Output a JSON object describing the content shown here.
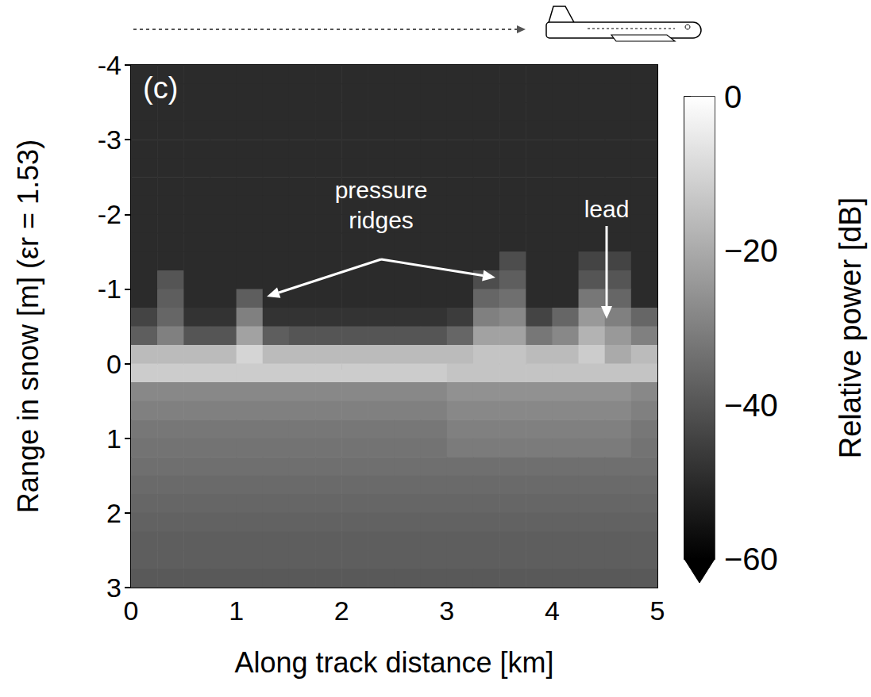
{
  "chart_data": {
    "type": "heatmap",
    "panel_label": "(c)",
    "xlabel": "Along track distance [km]",
    "ylabel": "Range in snow [m] (εr = 1.53)",
    "xlim": [
      0,
      5
    ],
    "xticks": [
      0,
      1,
      2,
      3,
      4,
      5
    ],
    "ylim": [
      -4,
      3
    ],
    "yticks": [
      -4,
      -3,
      -2,
      -1,
      0,
      1,
      2,
      3
    ],
    "x_bins": [
      0,
      0.25,
      0.5,
      0.75,
      1,
      1.25,
      1.5,
      1.75,
      2,
      2.25,
      2.5,
      2.75,
      3,
      3.25,
      3.5,
      3.75,
      4,
      4.25,
      4.5,
      4.75,
      5
    ],
    "y_bins": [
      -4,
      -3.75,
      -3.5,
      -3.25,
      -3,
      -2.75,
      -2.5,
      -2.25,
      -2,
      -1.75,
      -1.5,
      -1.25,
      -1,
      -0.75,
      -0.5,
      -0.25,
      0,
      0.25,
      0.5,
      0.75,
      1,
      1.25,
      1.5,
      1.75,
      2,
      2.25,
      2.5,
      2.75,
      3
    ],
    "cells": [
      [
        -50,
        -50,
        -50,
        -50,
        -50,
        -50,
        -50,
        -50,
        -50,
        -50,
        -50,
        -50,
        -50,
        -50,
        -50,
        -50,
        -50,
        -50,
        -50,
        -50
      ],
      [
        -50,
        -50,
        -50,
        -50,
        -50,
        -50,
        -50,
        -50,
        -50,
        -50,
        -50,
        -50,
        -50,
        -50,
        -50,
        -50,
        -50,
        -50,
        -50,
        -50
      ],
      [
        -50,
        -50,
        -50,
        -50,
        -50,
        -50,
        -50,
        -50,
        -50,
        -50,
        -50,
        -50,
        -50,
        -50,
        -50,
        -50,
        -50,
        -50,
        -50,
        -50
      ],
      [
        -50,
        -50,
        -50,
        -50,
        -50,
        -50,
        -50,
        -50,
        -50,
        -50,
        -50,
        -50,
        -50,
        -50,
        -50,
        -50,
        -50,
        -50,
        -50,
        -50
      ],
      [
        -50,
        -50,
        -50,
        -50,
        -50,
        -50,
        -50,
        -50,
        -50,
        -50,
        -50,
        -50,
        -50,
        -50,
        -50,
        -50,
        -50,
        -50,
        -50,
        -50
      ],
      [
        -50,
        -50,
        -50,
        -50,
        -50,
        -50,
        -50,
        -50,
        -50,
        -50,
        -50,
        -50,
        -50,
        -50,
        -50,
        -50,
        -50,
        -50,
        -50,
        -50
      ],
      [
        -50,
        -50,
        -50,
        -50,
        -50,
        -50,
        -50,
        -50,
        -50,
        -50,
        -50,
        -50,
        -50,
        -50,
        -50,
        -50,
        -50,
        -50,
        -50,
        -50
      ],
      [
        -50,
        -50,
        -50,
        -50,
        -50,
        -50,
        -50,
        -50,
        -50,
        -50,
        -50,
        -50,
        -50,
        -50,
        -50,
        -50,
        -50,
        -50,
        -50,
        -50
      ],
      [
        -50,
        -50,
        -50,
        -50,
        -50,
        -50,
        -50,
        -50,
        -50,
        -50,
        -50,
        -50,
        -50,
        -50,
        -50,
        -50,
        -50,
        -50,
        -50,
        -50
      ],
      [
        -50,
        -50,
        -50,
        -50,
        -50,
        -50,
        -50,
        -50,
        -50,
        -50,
        -50,
        -50,
        -50,
        -50,
        -50,
        -50,
        -50,
        -50,
        -50,
        -50
      ],
      [
        -50,
        -50,
        -50,
        -50,
        -50,
        -50,
        -50,
        -50,
        -50,
        -50,
        -50,
        -50,
        -50,
        -50,
        -42,
        -50,
        -50,
        -44,
        -44,
        -50
      ],
      [
        -50,
        -40,
        -50,
        -50,
        -50,
        -50,
        -50,
        -50,
        -50,
        -50,
        -50,
        -50,
        -50,
        -42,
        -38,
        -50,
        -50,
        -40,
        -40,
        -50
      ],
      [
        -50,
        -38,
        -50,
        -50,
        -38,
        -50,
        -50,
        -50,
        -50,
        -50,
        -50,
        -50,
        -50,
        -36,
        -34,
        -50,
        -50,
        -32,
        -36,
        -50
      ],
      [
        -44,
        -36,
        -48,
        -48,
        -30,
        -48,
        -48,
        -48,
        -48,
        -48,
        -48,
        -48,
        -46,
        -30,
        -28,
        -44,
        -36,
        -24,
        -30,
        -36
      ],
      [
        -38,
        -30,
        -40,
        -40,
        -22,
        -38,
        -40,
        -40,
        -40,
        -40,
        -40,
        -40,
        -36,
        -22,
        -22,
        -32,
        -28,
        -18,
        -24,
        -30
      ],
      [
        -16,
        -16,
        -16,
        -16,
        -10,
        -16,
        -16,
        -16,
        -16,
        -16,
        -16,
        -16,
        -16,
        -14,
        -14,
        -16,
        -16,
        -12,
        -20,
        -16
      ],
      [
        -12,
        -12,
        -12,
        -12,
        -12,
        -12,
        -12,
        -12,
        -12,
        -12,
        -12,
        -12,
        -14,
        -14,
        -14,
        -14,
        -14,
        -14,
        -14,
        -14
      ],
      [
        -28,
        -28,
        -28,
        -28,
        -28,
        -28,
        -28,
        -28,
        -28,
        -28,
        -28,
        -28,
        -26,
        -26,
        -26,
        -26,
        -26,
        -26,
        -26,
        -28
      ],
      [
        -30,
        -30,
        -30,
        -30,
        -30,
        -30,
        -30,
        -30,
        -30,
        -30,
        -30,
        -30,
        -28,
        -28,
        -28,
        -28,
        -28,
        -28,
        -28,
        -30
      ],
      [
        -32,
        -32,
        -32,
        -32,
        -32,
        -32,
        -32,
        -32,
        -32,
        -32,
        -32,
        -32,
        -30,
        -30,
        -30,
        -30,
        -30,
        -30,
        -30,
        -32
      ],
      [
        -33,
        -33,
        -33,
        -33,
        -33,
        -33,
        -33,
        -33,
        -33,
        -33,
        -33,
        -33,
        -31,
        -31,
        -31,
        -31,
        -31,
        -31,
        -31,
        -33
      ],
      [
        -34,
        -34,
        -34,
        -34,
        -34,
        -34,
        -34,
        -34,
        -34,
        -34,
        -34,
        -34,
        -34,
        -34,
        -34,
        -34,
        -34,
        -34,
        -34,
        -34
      ],
      [
        -35,
        -35,
        -35,
        -35,
        -35,
        -35,
        -35,
        -35,
        -35,
        -35,
        -35,
        -35,
        -35,
        -35,
        -35,
        -35,
        -35,
        -35,
        -35,
        -35
      ],
      [
        -36,
        -36,
        -36,
        -36,
        -36,
        -36,
        -36,
        -36,
        -36,
        -36,
        -36,
        -36,
        -36,
        -36,
        -36,
        -36,
        -36,
        -36,
        -36,
        -36
      ],
      [
        -37,
        -37,
        -37,
        -37,
        -37,
        -37,
        -37,
        -37,
        -37,
        -37,
        -37,
        -37,
        -37,
        -37,
        -37,
        -37,
        -37,
        -37,
        -37,
        -37
      ],
      [
        -38,
        -38,
        -38,
        -38,
        -38,
        -38,
        -38,
        -38,
        -38,
        -38,
        -38,
        -38,
        -38,
        -38,
        -38,
        -38,
        -38,
        -38,
        -38,
        -38
      ],
      [
        -38,
        -38,
        -38,
        -38,
        -38,
        -38,
        -38,
        -38,
        -38,
        -38,
        -38,
        -38,
        -38,
        -38,
        -38,
        -38,
        -38,
        -38,
        -38,
        -38
      ],
      [
        -39,
        -39,
        -39,
        -39,
        -39,
        -39,
        -39,
        -39,
        -39,
        -39,
        -39,
        -39,
        -39,
        -39,
        -39,
        -39,
        -39,
        -39,
        -39,
        -39
      ]
    ],
    "colorbar": {
      "label": "Relative power [dB]",
      "range": [
        -60,
        0
      ],
      "ticks": [
        0,
        {
          "value": -20,
          "label": "−20"
        },
        {
          "value": -40,
          "label": "−40"
        },
        {
          "value": -60,
          "label": "−60"
        }
      ]
    },
    "annotations": [
      {
        "text": "pressure ridges"
      },
      {
        "text": "lead"
      }
    ]
  }
}
